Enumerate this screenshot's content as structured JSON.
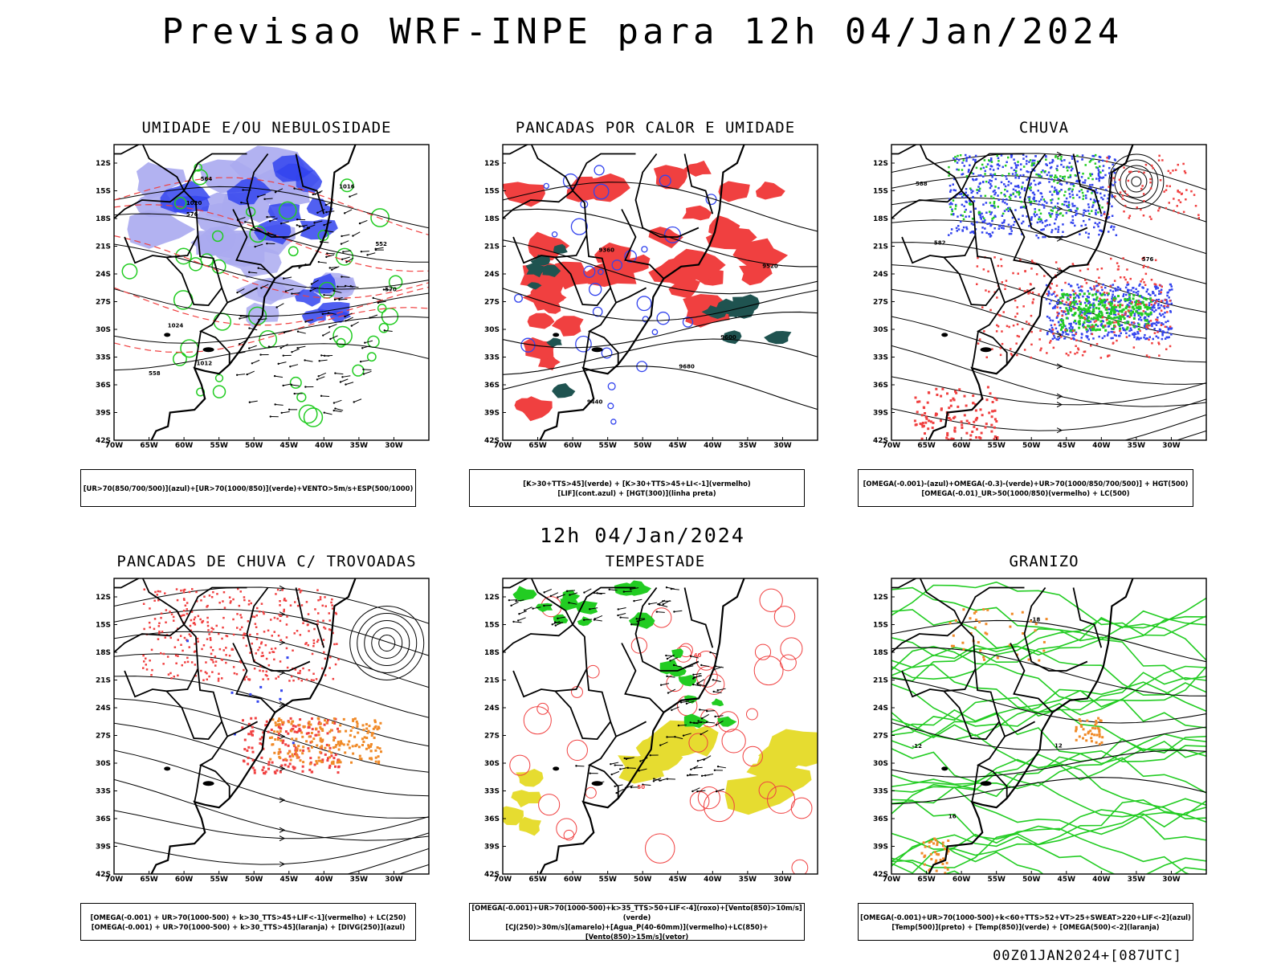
{
  "header": {
    "title": "Previsao WRF-INPE  para 12h 04/Jan/2024"
  },
  "middle_time": "12h 04/Jan/2024",
  "footer": "00Z01JAN2024+[087UTC]",
  "axes": {
    "lat_labels": [
      "12S",
      "15S",
      "18S",
      "21S",
      "24S",
      "27S",
      "30S",
      "33S",
      "36S",
      "39S",
      "42S"
    ],
    "lon_labels": [
      "70W",
      "65W",
      "60W",
      "55W",
      "50W",
      "45W",
      "40W",
      "35W",
      "30W"
    ]
  },
  "panels": [
    {
      "title": "UMIDADE E/OU NEBULOSIDADE",
      "legend": [
        "[UR>70(850/700/500)](azul)+[UR>70(1000/850)](verde)+VENTO>5m/s+ESP(500/1000)"
      ],
      "labels": [
        "1012",
        "1020",
        "1024",
        "1016",
        "570",
        "576",
        "564",
        "558",
        "552"
      ]
    },
    {
      "title": "PANCADAS POR CALOR E UMIDADE",
      "legend": [
        "[K>30+TTS>45](verde) + [K>30+TTS>45+LI<-1](vermelho)",
        "[LIF](cont.azul) + [HGT(300)](linha preta)"
      ],
      "labels": [
        "9680",
        "9600",
        "9520",
        "9440",
        "9360"
      ]
    },
    {
      "title": "CHUVA",
      "legend": [
        "[OMEGA(-0.001)-(azul)+OMEGA(-0.3)-(verde)+UR>70(1000/850/700/500)] + HGT(500)",
        "[OMEGA(-0.01)_UR>50(1000/850)(vermelho) + LC(500)"
      ],
      "labels": [
        "588",
        "582",
        "576"
      ]
    },
    {
      "title": "PANCADAS DE CHUVA C/ TROVOADAS",
      "legend": [
        "[OMEGA(-0.001) + UR>70(1000-500) + k>30_TTS>45+LIF<-1](vermelho) + LC(250)",
        "[OMEGA(-0.001) + UR>70(1000-500) + k>30_TTS>45](laranja) + [DIVG(250)](azul)"
      ],
      "labels": []
    },
    {
      "title": "TEMPESTADE",
      "legend": [
        "[OMEGA(-0.001)+UR>70(1000-500)+k>35_TTS>50+LIF<-4](roxo)+[Vento(850)>10m/s](verde)",
        "[CJ(250)>30m/s](amarelo)+[Agua_P(40-60mm)](vermelho)+LC(850)+[Vento(850)>15m/s](vetor)"
      ],
      "labels": [
        "40",
        "50"
      ]
    },
    {
      "title": "GRANIZO",
      "legend": [
        "[OMEGA(-0.001)+UR>70(1000-500)+k<60+TTS>52+VT>25+SWEAT>220+LIF<-2](azul)",
        "[Temp(500)](preto) + [Temp(850)](verde) + [OMEGA(500)<-2](laranja)"
      ],
      "labels": [
        "-12",
        "-18",
        "16",
        "12"
      ]
    }
  ],
  "colors": {
    "blue": "#3344ee",
    "lightblue": "#aaaaf0",
    "green": "#22cc22",
    "red": "#f04040",
    "teal": "#1f5350",
    "yellow": "#e6dc30",
    "orange": "#f08a28"
  }
}
